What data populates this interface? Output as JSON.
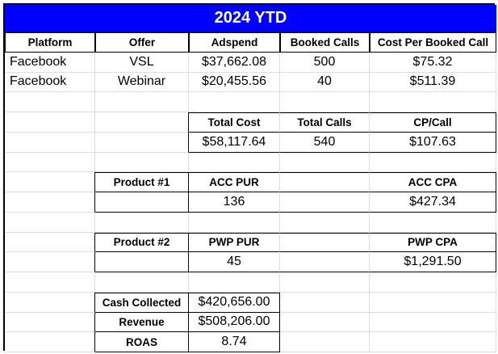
{
  "title": "2024 YTD",
  "colors": {
    "banner_bg": "#0000ff",
    "banner_text": "#ffffff"
  },
  "headers": [
    "Platform",
    "Offer",
    "Adspend",
    "Booked Calls",
    "Cost Per Booked Call"
  ],
  "rows": [
    [
      "Facebook",
      "VSL",
      "$37,662.08",
      "500",
      "$75.32"
    ],
    [
      "Facebook",
      "Webinar",
      "$20,455.56",
      "40",
      "$511.39"
    ]
  ],
  "totals": {
    "headers": [
      "Total Cost",
      "Total Calls",
      "CP/Call"
    ],
    "values": [
      "$58,117.64",
      "540",
      "$107.63"
    ]
  },
  "product1": {
    "label": "Product #1",
    "pur_label": "ACC PUR",
    "pur_value": "136",
    "cpa_label": "ACC CPA",
    "cpa_value": "$427.34"
  },
  "product2": {
    "label": "Product #2",
    "pur_label": "PWP PUR",
    "pur_value": "45",
    "cpa_label": "PWP CPA",
    "cpa_value": "$1,291.50"
  },
  "summary": [
    {
      "label": "Cash Collected",
      "value": "$420,656.00"
    },
    {
      "label": "Revenue",
      "value": "$508,206.00"
    },
    {
      "label": "ROAS",
      "value": "8.74"
    }
  ]
}
